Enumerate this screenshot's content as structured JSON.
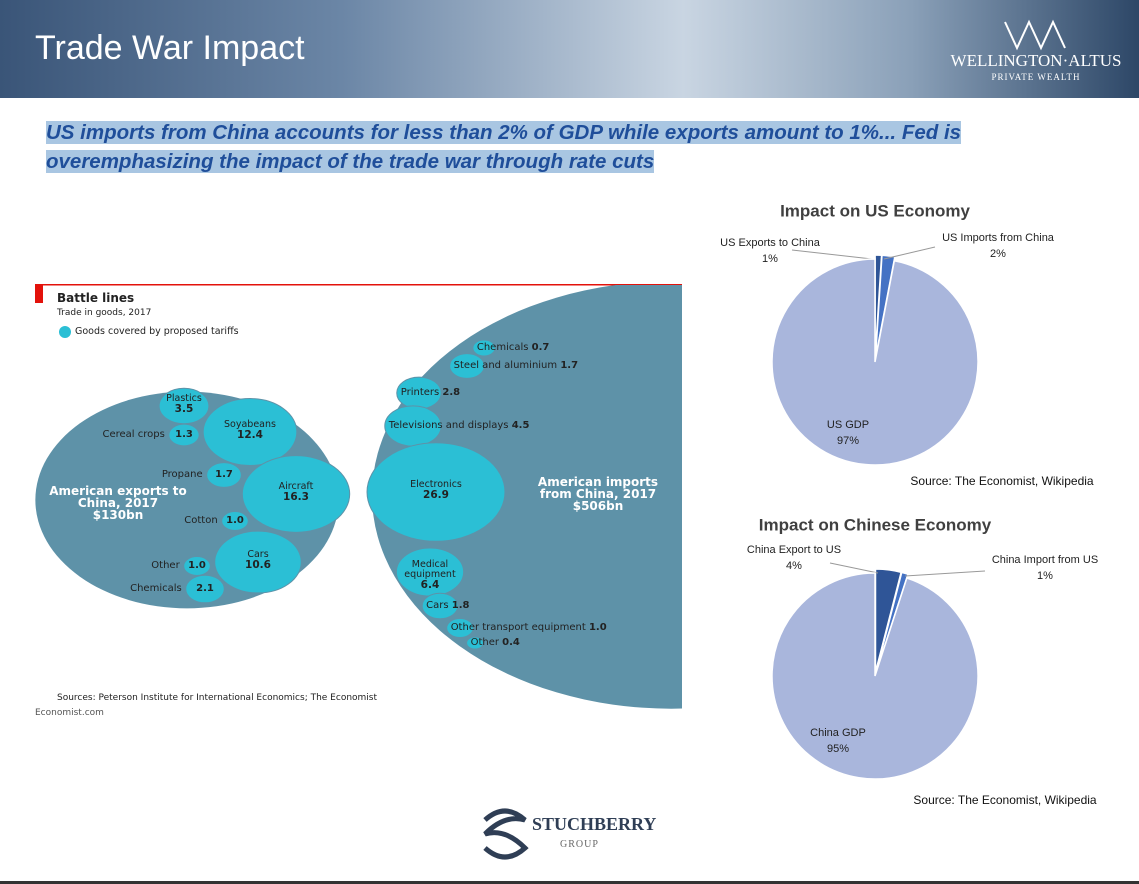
{
  "header": {
    "title": "Trade War Impact",
    "logo": "WELLINGTON·ALTUS",
    "logo_sub": "PRIVATE WEALTH"
  },
  "headline": "US imports from China accounts for less than 2% of GDP while exports amount to 1%... Fed is overemphasizing the impact of the trade war through rate cuts",
  "footer": {
    "logo": "STUCHBERRY",
    "logo_sub": "GROUP"
  },
  "chart_data": [
    {
      "type": "bubble",
      "title": "Battle lines",
      "subtitle": "Trade in goods, 2017",
      "legend": "Goods covered by proposed tariffs",
      "bubble_color": "#2bbfd5",
      "total_color": "#5e92a8",
      "source": "Sources: Peterson Institute for International Economics; The Economist",
      "credit": "Economist.com",
      "series": [
        {
          "name": "American exports to China, 2017",
          "total": 130,
          "total_label": "$130bn",
          "categories": [
            "Plastics",
            "Soyabeans",
            "Cereal crops",
            "Propane",
            "Aircraft",
            "Cotton",
            "Cars",
            "Other",
            "Chemicals"
          ],
          "values": [
            3.5,
            12.4,
            1.3,
            1.7,
            16.3,
            1.0,
            10.6,
            1.0,
            2.1
          ],
          "value_labels": [
            "3.5",
            "12.4",
            "1.3",
            "1.7",
            "16.3",
            "1.0",
            "10.6",
            "1.0",
            "2.1"
          ]
        },
        {
          "name": "American imports from China, 2017",
          "total": 506,
          "total_label": "$506bn",
          "categories": [
            "Chemicals",
            "Steel and aluminium",
            "Printers",
            "Televisions and displays",
            "Electronics",
            "Medical equipment",
            "Cars",
            "Other transport equipment",
            "Other"
          ],
          "values": [
            0.7,
            1.7,
            2.8,
            4.5,
            26.9,
            6.4,
            1.8,
            1.0,
            0.4
          ],
          "value_labels": [
            "0.7",
            "1.7",
            "2.8",
            "4.5",
            "26.9",
            "6.4",
            "1.8",
            "1.0",
            "0.4"
          ]
        }
      ]
    },
    {
      "type": "pie",
      "title": "Impact on US Economy",
      "source": "Source: The Economist, Wikipedia",
      "categories": [
        "US Exports to China",
        "US Imports from China",
        "US GDP"
      ],
      "values": [
        1,
        2,
        97
      ],
      "value_labels": [
        "1%",
        "2%",
        "97%"
      ],
      "colors": [
        "#2f5597",
        "#4472c4",
        "#a9b6dc"
      ]
    },
    {
      "type": "pie",
      "title": "Impact on Chinese Economy",
      "source": "Source: The Economist, Wikipedia",
      "categories": [
        "China Export to US",
        "China Import from US",
        "China GDP"
      ],
      "values": [
        4,
        1,
        95
      ],
      "value_labels": [
        "4%",
        "1%",
        "95%"
      ],
      "colors": [
        "#2f5597",
        "#4472c4",
        "#a9b6dc"
      ]
    }
  ]
}
